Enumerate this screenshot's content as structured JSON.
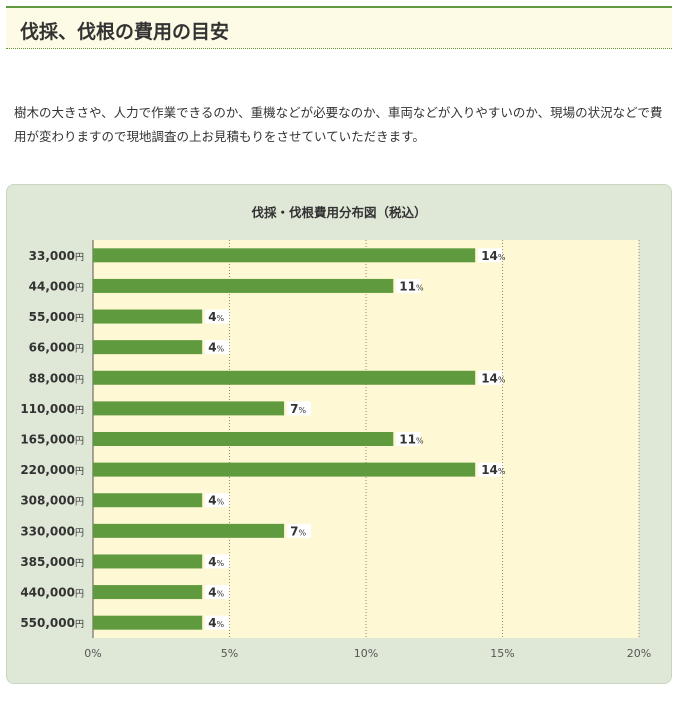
{
  "heading": {
    "title": "伐採、伐根の費用の目安"
  },
  "description": "樹木の大きさや、人力で作業できるのか、重機などが必要なのか、車両などが入りやすいのか、現場の状況などで費用が変わりますので現地調査の上お見積もりをさせていていただきます。",
  "colors": {
    "bar": "#5f9a3e",
    "plot_bg": "#fff8d4",
    "panel_bg": "#dfe8d7",
    "heading_line": "#5f9a3e"
  },
  "chart_data": {
    "type": "bar",
    "orientation": "horizontal",
    "title": "伐採・伐根費用分布図（税込）",
    "categories": [
      "33,000円",
      "44,000円",
      "55,000円",
      "66,000円",
      "88,000円",
      "110,000円",
      "165,000円",
      "220,000円",
      "308,000円",
      "330,000円",
      "385,000円",
      "440,000円",
      "550,000円"
    ],
    "values": [
      14,
      11,
      4,
      4,
      14,
      7,
      11,
      14,
      4,
      7,
      4,
      4,
      4
    ],
    "value_unit": "%",
    "xlim": [
      0,
      20
    ],
    "xticks": [
      "0%",
      "5%",
      "10%",
      "15%",
      "20%"
    ],
    "grid": true
  }
}
